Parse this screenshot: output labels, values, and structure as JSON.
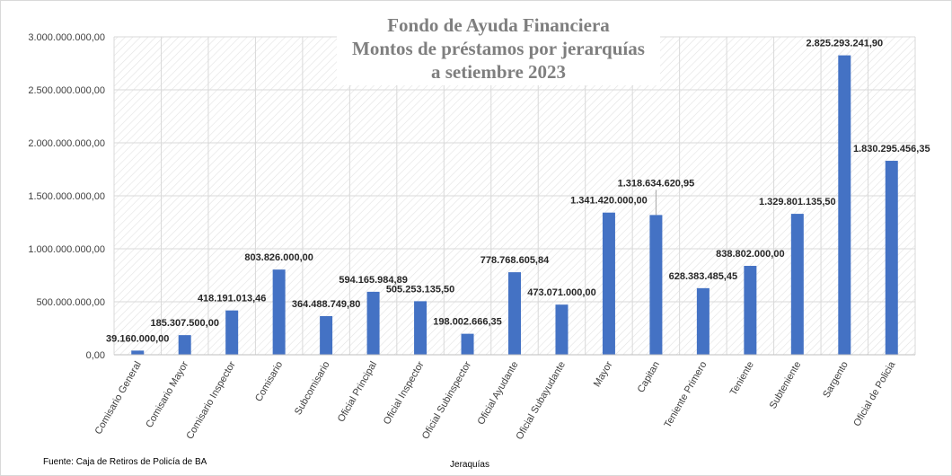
{
  "chart_data": {
    "type": "bar",
    "title_lines": [
      "Fondo de Ayuda Financiera",
      "Montos de préstamos por jerarquías",
      "a setiembre 2023"
    ],
    "xlabel": "Jeraquías",
    "ylabel": "",
    "source": "Fuente: Caja de Retiros de Policía de BA",
    "ylim": [
      0,
      3000000000
    ],
    "y_ticks": [
      0,
      500000000,
      1000000000,
      1500000000,
      2000000000,
      2500000000,
      3000000000
    ],
    "y_tick_labels": [
      "0,00",
      "500.000.000,00",
      "1.000.000.000,00",
      "1.500.000.000,00",
      "2.000.000.000,00",
      "2.500.000.000,00",
      "3.000.000.000,00"
    ],
    "categories": [
      "Comisario General",
      "Comisario Mayor",
      "Comisario Inspector",
      "Comisario",
      "Subcomisario",
      "Oficial Principal",
      "Oficial Inspector",
      "Oficial Subinspector",
      "Oficial Ayudante",
      "Oficial Subayudante",
      "Mayor",
      "Capitan",
      "Teniente Primero",
      "Teniente",
      "Subteniente",
      "Sargento",
      "Oficial de Policia"
    ],
    "values": [
      39160000.0,
      185307500.0,
      418191013.46,
      803826000.0,
      364488749.8,
      594165984.89,
      505253135.5,
      198002666.35,
      778768605.84,
      473071000.0,
      1341420000.0,
      1318634620.95,
      628383485.45,
      838802000.0,
      1329801135.5,
      2825293241.9,
      1830295456.35
    ],
    "value_labels": [
      "39.160.000,00",
      "185.307.500,00",
      "418.191.013,46",
      "803.826.000,00",
      "364.488.749,80",
      "594.165.984,89",
      "505.253.135,50",
      "198.002.666,35",
      "778.768.605,84",
      "473.071.000,00",
      "1.341.420.000,00",
      "1.318.634.620,95",
      "628.383.485,45",
      "838.802.000,00",
      "1.329.801.135,50",
      "2.825.293.241,90",
      "1.830.295.456,35"
    ],
    "bar_color": "#4472c4",
    "grid": true,
    "legend": "none"
  }
}
